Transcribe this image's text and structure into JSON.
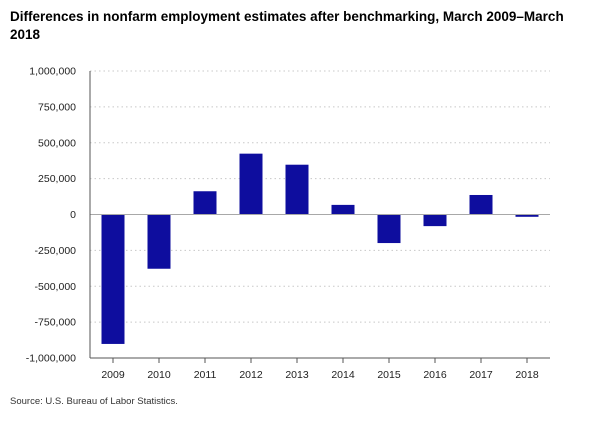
{
  "chart_data": {
    "type": "bar",
    "title": "Differences in nonfarm employment estimates after benchmarking, March 2009–March 2018",
    "xlabel": "",
    "ylabel": "",
    "categories": [
      "2009",
      "2010",
      "2011",
      "2012",
      "2013",
      "2014",
      "2015",
      "2016",
      "2017",
      "2018"
    ],
    "values": [
      -902000,
      -378000,
      162000,
      424000,
      347000,
      67000,
      -199000,
      -81000,
      136000,
      -16000
    ],
    "ylim": [
      -1000000,
      1000000
    ],
    "yticks": [
      1000000,
      750000,
      500000,
      250000,
      0,
      -250000,
      -500000,
      -750000,
      -1000000
    ],
    "ytick_labels": [
      "1,000,000",
      "750,000",
      "500,000",
      "250,000",
      "0",
      "-250,000",
      "-500,000",
      "-750,000",
      "-1,000,000"
    ],
    "grid": "horizontal dotted",
    "legend": "none",
    "bar_color": "#0e0d9e"
  },
  "source": "Source: U.S. Bureau of Labor Statistics."
}
